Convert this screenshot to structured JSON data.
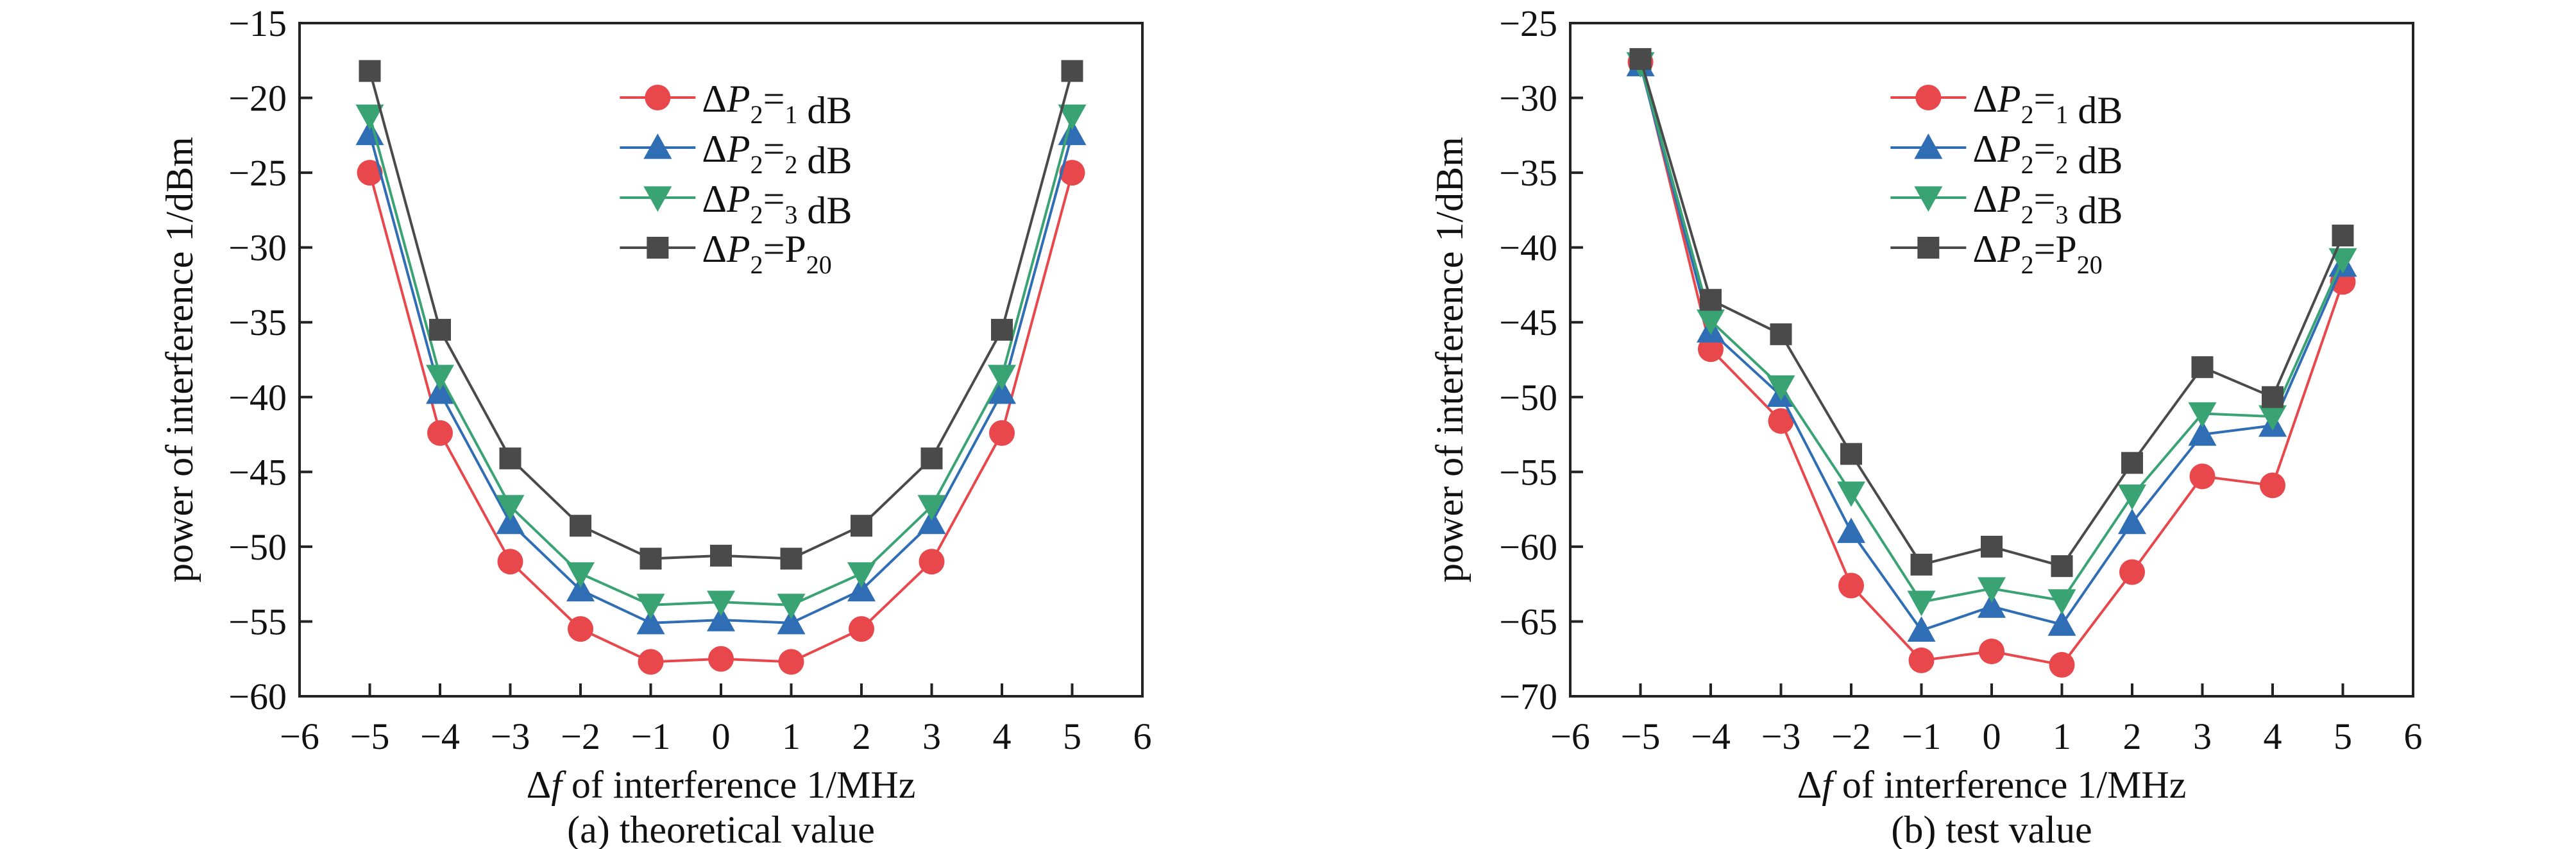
{
  "chart_data": [
    {
      "type": "line",
      "subtitle": "(a) theoretical value",
      "xlabel": "Δf of interference 1/MHz",
      "ylabel": "power of interference 1/dBm",
      "xlim": [
        -6,
        6
      ],
      "ylim": [
        -60,
        -15
      ],
      "xticks": [
        -6,
        -5,
        -4,
        -3,
        -2,
        -1,
        0,
        1,
        2,
        3,
        4,
        5,
        6
      ],
      "yticks": [
        -60,
        -55,
        -50,
        -45,
        -40,
        -35,
        -30,
        -25,
        -20,
        -15
      ],
      "grid": false,
      "legend": "top-center",
      "x": [
        -5,
        -4,
        -3,
        -2,
        -1,
        0,
        1,
        2,
        3,
        4,
        5
      ],
      "series": [
        {
          "name": "ΔP2=1 dB",
          "marker": "circle",
          "color": "#e8474c",
          "values": [
            -25,
            -42.4,
            -51,
            -55.5,
            -57.7,
            -57.5,
            -57.7,
            -55.5,
            -51,
            -42.4,
            -25
          ]
        },
        {
          "name": "ΔP2=2 dB",
          "marker": "triangle-up",
          "color": "#2f6db5",
          "values": [
            -22.4,
            -39.7,
            -48.4,
            -52.9,
            -55.1,
            -54.9,
            -55.1,
            -52.9,
            -48.4,
            -39.7,
            -22.4
          ]
        },
        {
          "name": "ΔP2=3 dB",
          "marker": "triangle-down",
          "color": "#3aa374",
          "values": [
            -21.2,
            -38.6,
            -47.3,
            -51.8,
            -53.9,
            -53.7,
            -53.9,
            -51.8,
            -47.3,
            -38.6,
            -21.2
          ]
        },
        {
          "name": "ΔP2=P20",
          "marker": "square",
          "color": "#4a4a4a",
          "values": [
            -18.2,
            -35.5,
            -44.1,
            -48.6,
            -50.8,
            -50.6,
            -50.8,
            -48.6,
            -44.1,
            -35.5,
            -18.2
          ]
        }
      ]
    },
    {
      "type": "line",
      "subtitle": "(b) test value",
      "xlabel": "Δf of interference 1/MHz",
      "ylabel": "power of interference 1/dBm",
      "xlim": [
        -6,
        6
      ],
      "ylim": [
        -70,
        -25
      ],
      "xticks": [
        -6,
        -5,
        -4,
        -3,
        -2,
        -1,
        0,
        1,
        2,
        3,
        4,
        5,
        6
      ],
      "yticks": [
        -70,
        -65,
        -60,
        -55,
        -50,
        -45,
        -40,
        -35,
        -30,
        -25
      ],
      "grid": false,
      "legend": "top-center",
      "x": [
        -5,
        -4,
        -3,
        -2,
        -1,
        0,
        1,
        2,
        3,
        4,
        5
      ],
      "series": [
        {
          "name": "ΔP2=1 dB",
          "marker": "circle",
          "color": "#e8474c",
          "values": [
            -27.6,
            -46.8,
            -51.6,
            -62.6,
            -67.6,
            -67.0,
            -67.9,
            -61.7,
            -55.3,
            -55.9,
            -42.3
          ]
        },
        {
          "name": "ΔP2=2 dB",
          "marker": "triangle-up",
          "color": "#2f6db5",
          "values": [
            -27.8,
            -45.6,
            -49.9,
            -59.0,
            -65.6,
            -64.0,
            -65.2,
            -58.4,
            -52.5,
            -51.9,
            -41.2
          ]
        },
        {
          "name": "ΔP2=3 dB",
          "marker": "triangle-down",
          "color": "#3aa374",
          "values": [
            -27.7,
            -44.9,
            -49.3,
            -56.4,
            -63.7,
            -62.8,
            -63.6,
            -56.6,
            -51.1,
            -51.3,
            -40.8
          ]
        },
        {
          "name": "ΔP2=P20",
          "marker": "square",
          "color": "#4a4a4a",
          "values": [
            -27.4,
            -43.5,
            -45.8,
            -53.8,
            -61.2,
            -60.0,
            -61.3,
            -54.4,
            -48.0,
            -50.0,
            -39.2
          ]
        }
      ]
    }
  ]
}
